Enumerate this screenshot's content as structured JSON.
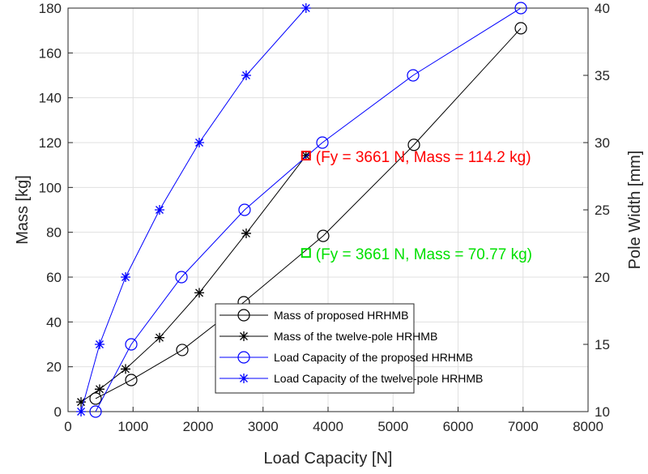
{
  "chart_data": {
    "type": "line",
    "title": "",
    "xlabel": "Load Capacity [N]",
    "ylabel": "Mass [kg]",
    "ylabel_right": "Pole Width [mm]",
    "xlim": [
      0,
      8000
    ],
    "ylim": [
      0,
      180
    ],
    "ylim_right": [
      10,
      40
    ],
    "xticks": [
      0,
      1000,
      2000,
      3000,
      4000,
      5000,
      6000,
      7000,
      8000
    ],
    "yticks": [
      0,
      20,
      40,
      60,
      80,
      100,
      120,
      140,
      160,
      180
    ],
    "yticks_right": [
      10,
      15,
      20,
      25,
      30,
      35,
      40
    ],
    "grid": true,
    "legend_position": "bottom-right",
    "series": [
      {
        "name": "Mass of proposed HRHMB",
        "axis": "left",
        "color": "#000000",
        "marker": "circle",
        "x": [
          424,
          972,
          1757,
          2704,
          3925,
          5321,
          6966
        ],
        "y": [
          5.8,
          14.1,
          27.5,
          48.8,
          78.4,
          119,
          171
        ]
      },
      {
        "name": "Mass of the twelve-pole HRHMB",
        "axis": "left",
        "color": "#000000",
        "marker": "star",
        "x": [
          200,
          486,
          885,
          1408,
          2019,
          2741,
          3661
        ],
        "y": [
          4.3,
          10,
          19,
          33,
          53,
          79.5,
          114.2
        ]
      },
      {
        "name": "Load Capacity of the proposed HRHMB",
        "axis": "right",
        "color": "#0000ff",
        "marker": "circle",
        "x": [
          424,
          972,
          1745,
          2716,
          3913,
          5308,
          6966
        ],
        "y": [
          10,
          15,
          20,
          25,
          30,
          35,
          40
        ]
      },
      {
        "name": "Load Capacity of the twelve-pole HRHMB",
        "axis": "right",
        "color": "#0000ff",
        "marker": "star",
        "x": [
          200,
          486,
          885,
          1408,
          2019,
          2741,
          3661
        ],
        "y": [
          10,
          15,
          20,
          25,
          30,
          35,
          40
        ]
      }
    ],
    "annotations": [
      {
        "text": "(Fy = 3661 N, Mass = 114.2 kg)",
        "x": 3661,
        "y": 114.2,
        "color": "#ff0000"
      },
      {
        "text": "(Fy = 3661 N, Mass = 70.77 kg)",
        "x": 3661,
        "y": 70.77,
        "color": "#00e000"
      }
    ]
  }
}
